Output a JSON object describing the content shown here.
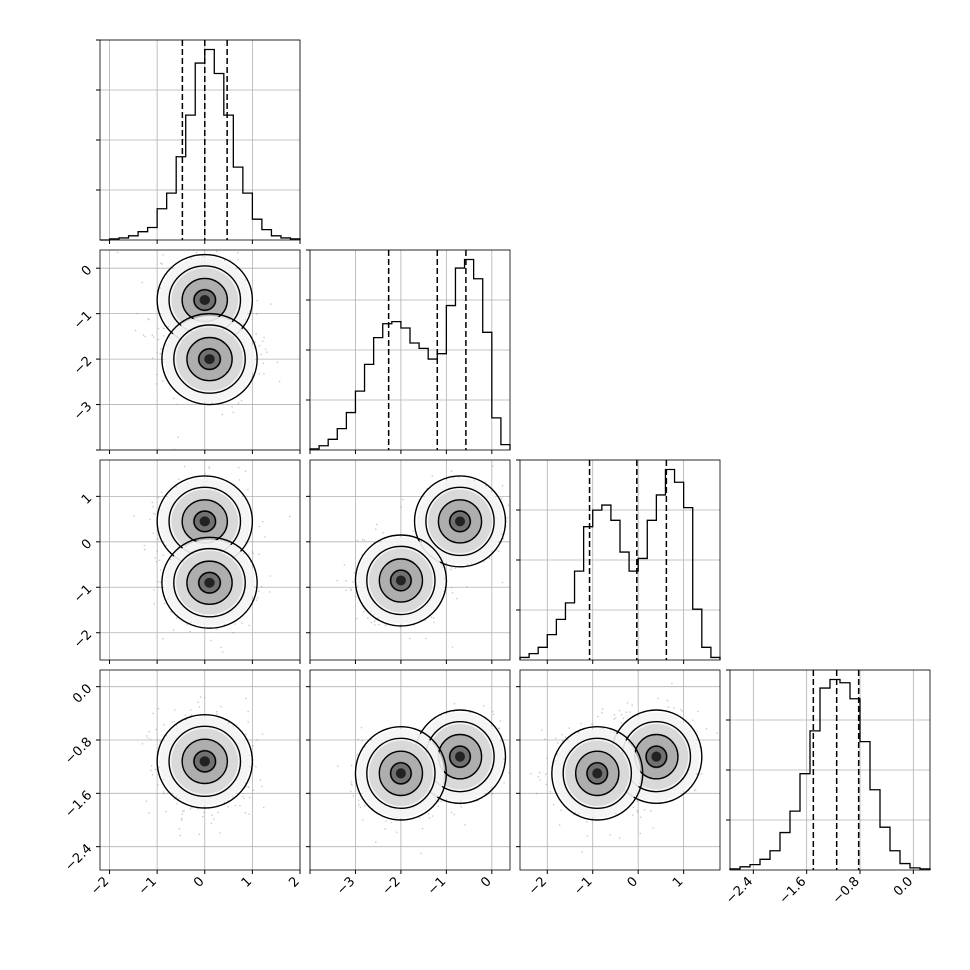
{
  "chart_data": [
    {
      "type": "histogram",
      "variable_index": 0,
      "bin_edges": [
        -2.2,
        -2.0,
        -1.8,
        -1.6,
        -1.4,
        -1.2,
        -1.0,
        -0.8,
        -0.6,
        -0.4,
        -0.2,
        0.0,
        0.2,
        0.4,
        0.6,
        0.8,
        1.0,
        1.2,
        1.4,
        1.6,
        1.8,
        2.0
      ],
      "counts": [
        0,
        1,
        2,
        4,
        8,
        12,
        30,
        45,
        80,
        120,
        170,
        183,
        160,
        120,
        70,
        45,
        20,
        10,
        4,
        2,
        1
      ],
      "quantiles": [
        -0.47,
        0.0,
        0.47
      ],
      "xlim": [
        -2.2,
        2.0
      ],
      "xticks": [
        "−2",
        "−1",
        "0",
        "1",
        "2"
      ]
    },
    {
      "type": "histogram",
      "variable_index": 1,
      "bin_edges": [
        -4.0,
        -3.8,
        -3.6,
        -3.4,
        -3.2,
        -3.0,
        -2.8,
        -2.6,
        -2.4,
        -2.2,
        -2.0,
        -1.8,
        -1.6,
        -1.4,
        -1.2,
        -1.0,
        -0.8,
        -0.6,
        -0.4,
        -0.2,
        0.0,
        0.2,
        0.4
      ],
      "counts": [
        1,
        4,
        10,
        20,
        35,
        55,
        80,
        105,
        118,
        120,
        114,
        100,
        95,
        85,
        90,
        135,
        170,
        178,
        160,
        110,
        30,
        5
      ],
      "quantiles": [
        -2.27,
        -1.2,
        -0.57
      ],
      "xlim": [
        -4.0,
        0.4
      ],
      "xticks": [
        "−3",
        "−2",
        "−1",
        "0"
      ]
    },
    {
      "type": "histogram",
      "variable_index": 2,
      "bin_edges": [
        -2.6,
        -2.4,
        -2.2,
        -2.0,
        -1.8,
        -1.6,
        -1.4,
        -1.2,
        -1.0,
        -0.8,
        -0.6,
        -0.4,
        -0.2,
        0.0,
        0.2,
        0.4,
        0.6,
        0.8,
        1.0,
        1.2,
        1.4,
        1.6,
        1.8
      ],
      "counts": [
        2,
        5,
        10,
        20,
        32,
        45,
        70,
        105,
        118,
        122,
        110,
        85,
        70,
        80,
        110,
        130,
        150,
        140,
        120,
        40,
        10,
        2
      ],
      "quantiles": [
        -1.07,
        -0.03,
        0.62
      ],
      "xlim": [
        -2.6,
        1.8
      ],
      "xticks": [
        "−2",
        "−1",
        "0",
        "1"
      ]
    },
    {
      "type": "histogram",
      "variable_index": 3,
      "bin_edges": [
        -2.75,
        -2.6,
        -2.45,
        -2.3,
        -2.15,
        -2.0,
        -1.85,
        -1.7,
        -1.55,
        -1.4,
        -1.25,
        -1.1,
        -0.95,
        -0.8,
        -0.65,
        -0.5,
        -0.35,
        -0.2,
        -0.05,
        0.1,
        0.25
      ],
      "counts": [
        1,
        3,
        5,
        10,
        18,
        35,
        55,
        90,
        130,
        170,
        178,
        175,
        160,
        120,
        75,
        40,
        18,
        6,
        2,
        1
      ],
      "quantiles": [
        -1.5,
        -1.15,
        -0.82
      ],
      "xlim": [
        -2.75,
        0.25
      ],
      "xticks": [
        "−2.4",
        "−1.6",
        "−0.8",
        "0.0"
      ]
    },
    {
      "type": "contour",
      "x_variable": 0,
      "y_variable": 1,
      "xlim": [
        -2.2,
        2.0
      ],
      "ylim": [
        -4.0,
        0.4
      ],
      "modes": [
        {
          "x": 0.0,
          "y": -0.7
        },
        {
          "x": 0.1,
          "y": -2.0
        }
      ],
      "yticks": [
        "0",
        "−1",
        "−2",
        "−3"
      ]
    },
    {
      "type": "contour",
      "x_variable": 0,
      "y_variable": 2,
      "xlim": [
        -2.2,
        2.0
      ],
      "ylim": [
        -2.6,
        1.8
      ],
      "modes": [
        {
          "x": 0.0,
          "y": 0.45
        },
        {
          "x": 0.1,
          "y": -0.9
        }
      ],
      "yticks": [
        "1",
        "0",
        "−1",
        "−2"
      ]
    },
    {
      "type": "contour",
      "x_variable": 1,
      "y_variable": 2,
      "xlim": [
        -4.0,
        0.4
      ],
      "ylim": [
        -2.6,
        1.8
      ],
      "modes": [
        {
          "x": -0.7,
          "y": 0.45
        },
        {
          "x": -2.0,
          "y": -0.85
        }
      ]
    },
    {
      "type": "contour",
      "x_variable": 0,
      "y_variable": 3,
      "xlim": [
        -2.2,
        2.0
      ],
      "ylim": [
        -2.75,
        0.25
      ],
      "modes": [
        {
          "x": 0.0,
          "y": -1.12
        }
      ],
      "yticks": [
        "0.0",
        "−0.8",
        "−1.6",
        "−2.4"
      ]
    },
    {
      "type": "contour",
      "x_variable": 1,
      "y_variable": 3,
      "xlim": [
        -4.0,
        0.4
      ],
      "ylim": [
        -2.75,
        0.25
      ],
      "modes": [
        {
          "x": -0.7,
          "y": -1.05
        },
        {
          "x": -2.0,
          "y": -1.3
        }
      ]
    },
    {
      "type": "contour",
      "x_variable": 2,
      "y_variable": 3,
      "xlim": [
        -2.6,
        1.8
      ],
      "ylim": [
        -2.75,
        0.25
      ],
      "modes": [
        {
          "x": 0.4,
          "y": -1.05
        },
        {
          "x": -0.9,
          "y": -1.3
        }
      ]
    }
  ]
}
